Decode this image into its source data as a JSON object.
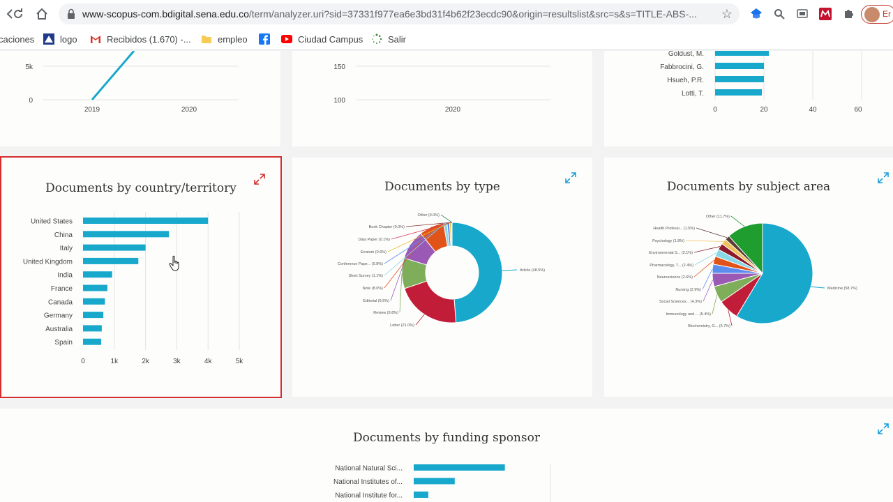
{
  "browser": {
    "url_host": "www-scopus-com.bdigital.sena.edu.co",
    "url_path": "/term/analyzer.uri?sid=37331f977ea6e3bd31f4b62f23ecdc90&origin=resultslist&src=s&s=TITLE-ABS-...",
    "profile_text": "Er"
  },
  "bookmarks": [
    {
      "label": "caciones",
      "icon": "apps-icon"
    },
    {
      "label": "logo",
      "icon": "logo-icon"
    },
    {
      "label": "Recibidos (1.670) -...",
      "icon": "gmail-icon"
    },
    {
      "label": "empleo",
      "icon": "folder-icon"
    },
    {
      "label": "",
      "icon": "facebook-icon"
    },
    {
      "label": "Ciudad Campus",
      "icon": "youtube-icon"
    },
    {
      "label": "Salir",
      "icon": "loading-icon"
    }
  ],
  "top_cards": {
    "year_chart": {
      "yticks": [
        "5k",
        "0"
      ],
      "xticks": [
        "2019",
        "2020"
      ]
    },
    "mid_chart": {
      "yticks": [
        "150",
        "100"
      ],
      "xticks": [
        "2020"
      ]
    },
    "author_chart": {
      "labels": [
        "Goldust, M.",
        "Fabbrocini, G.",
        "Hsueh, P.R.",
        "Lotti, T."
      ],
      "xticks": [
        "0",
        "20",
        "40",
        "60"
      ]
    }
  },
  "cards": {
    "country": {
      "title": "Documents by country/territory"
    },
    "type": {
      "title": "Documents by type"
    },
    "subject": {
      "title": "Documents by subject area"
    },
    "funding": {
      "title": "Documents by funding sponsor"
    }
  },
  "chart_data": [
    {
      "type": "bar",
      "title": "Documents by country/territory",
      "orientation": "horizontal",
      "categories": [
        "United States",
        "China",
        "Italy",
        "United Kingdom",
        "India",
        "France",
        "Canada",
        "Germany",
        "Australia",
        "Spain"
      ],
      "values": [
        4000,
        2750,
        2000,
        1770,
        930,
        780,
        700,
        650,
        600,
        580
      ],
      "xticks": [
        "0",
        "1k",
        "2k",
        "3k",
        "4k",
        "5k"
      ],
      "xlim": [
        0,
        5000
      ],
      "color": "#17a8cc"
    },
    {
      "type": "pie",
      "title": "Documents by type",
      "donut": true,
      "labels": [
        "Article (48.5%)",
        "Letter (21.0%)",
        "Review (9.8%)",
        "Editorial (9.5%)",
        "Note (8.0%)",
        "Short Survey (1.1%)",
        "Conference Pape... (0.8%)",
        "Erratum (0.6%)",
        "Data Paper (0.1%)",
        "Book Chapter (0.0%)",
        "Other (0.0%)"
      ],
      "values": [
        48.5,
        21.0,
        9.8,
        9.5,
        8.0,
        1.1,
        0.8,
        0.6,
        0.1,
        0.05,
        0.05
      ],
      "colors": [
        "#17a8cc",
        "#c21d38",
        "#7fae5a",
        "#9b59b6",
        "#e2531a",
        "#89d8e8",
        "#5b8def",
        "#e6c12e",
        "#d13a5e",
        "#8b3a3a",
        "#2e8b57"
      ]
    },
    {
      "type": "pie",
      "title": "Documents by subject area",
      "labels": [
        "Medicine (58.7%)",
        "Biochemistry, G... (6.7%)",
        "Immunology and ... (5.4%)",
        "Social Sciences... (4.3%)",
        "Nursing (2.9%)",
        "Neuroscience (2.6%)",
        "Pharmacology, T... (2.4%)",
        "Environmental S... (2.1%)",
        "Psychology (1.8%)",
        "Health Professi... (1.5%)",
        "Other (11.7%)"
      ],
      "values": [
        58.7,
        6.7,
        5.4,
        4.3,
        2.9,
        2.6,
        2.4,
        2.1,
        1.8,
        1.5,
        11.7
      ],
      "colors": [
        "#17a8cc",
        "#c21d38",
        "#7fae5a",
        "#9b59b6",
        "#5b8def",
        "#e2531a",
        "#89d8e8",
        "#8b1a2b",
        "#f0c05a",
        "#5a3e36",
        "#1f9d2f"
      ]
    },
    {
      "type": "bar",
      "title": "Documents by funding sponsor",
      "orientation": "horizontal",
      "categories": [
        "National Natural Sci...",
        "National Institutes of...",
        "National Institute for..."
      ],
      "values": [
        100,
        45,
        16
      ],
      "color": "#17a8cc"
    }
  ]
}
